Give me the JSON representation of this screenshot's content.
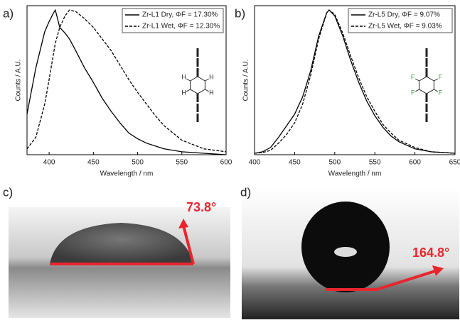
{
  "chart_data": [
    {
      "type": "line",
      "panel": "a)",
      "xlabel": "Wavelength / nm",
      "ylabel": "Counts / A.U.",
      "atom_label": "H",
      "xlim": [
        375,
        600
      ],
      "xticks": [
        400,
        450,
        500,
        550,
        600
      ],
      "ylim": [
        0,
        1.03
      ],
      "x": [
        375,
        385,
        395,
        400,
        405,
        407,
        412,
        418,
        423,
        430,
        440,
        450,
        460,
        470,
        480,
        490,
        500,
        510,
        520,
        530,
        550,
        575,
        600
      ],
      "series": [
        {
          "name": "Zr-L1 Dry, ΦF = 17.30%",
          "color": "#000000",
          "dash": "solid",
          "values": [
            0.28,
            0.6,
            0.85,
            0.92,
            0.98,
            1.0,
            0.88,
            0.84,
            0.8,
            0.72,
            0.6,
            0.5,
            0.39,
            0.3,
            0.22,
            0.15,
            0.11,
            0.08,
            0.06,
            0.04,
            0.02,
            0.01,
            0
          ]
        },
        {
          "name": "Zr-L1 Wet, ΦF = 12.30%",
          "color": "#000000",
          "dash": "dashed",
          "values": [
            0.04,
            0.12,
            0.35,
            0.52,
            0.7,
            0.77,
            0.88,
            0.96,
            1.0,
            0.99,
            0.94,
            0.88,
            0.8,
            0.72,
            0.62,
            0.52,
            0.43,
            0.35,
            0.27,
            0.2,
            0.1,
            0.04,
            0.02
          ]
        }
      ]
    },
    {
      "type": "line",
      "panel": "b)",
      "xlabel": "Wavelength / nm",
      "ylabel": "Counts / A.U.",
      "atom_label": "F",
      "xlim": [
        400,
        650
      ],
      "xticks": [
        400,
        450,
        500,
        550,
        600,
        650
      ],
      "ylim": [
        0,
        1.03
      ],
      "x": [
        400,
        410,
        420,
        430,
        440,
        450,
        460,
        470,
        480,
        490,
        493,
        500,
        510,
        520,
        530,
        540,
        550,
        560,
        570,
        580,
        600,
        620,
        650
      ],
      "series": [
        {
          "name": "Zr-L5 Dry, ΦF = 9.07%",
          "color": "#000000",
          "dash": "solid",
          "values": [
            0.01,
            0.02,
            0.05,
            0.12,
            0.2,
            0.28,
            0.4,
            0.58,
            0.82,
            0.98,
            1.0,
            0.96,
            0.82,
            0.65,
            0.5,
            0.37,
            0.27,
            0.19,
            0.13,
            0.09,
            0.04,
            0.02,
            0.01
          ]
        },
        {
          "name": "Zr-L5 Wet, ΦF = 9.03%",
          "color": "#000000",
          "dash": "dashed",
          "values": [
            0.01,
            0.015,
            0.03,
            0.08,
            0.14,
            0.22,
            0.35,
            0.55,
            0.8,
            0.98,
            1.0,
            0.97,
            0.84,
            0.68,
            0.53,
            0.4,
            0.3,
            0.21,
            0.15,
            0.1,
            0.05,
            0.02,
            0.01
          ]
        }
      ]
    }
  ],
  "photos": [
    {
      "panel": "c)",
      "angle": "73.8°"
    },
    {
      "panel": "d)",
      "angle": "164.8°"
    }
  ]
}
